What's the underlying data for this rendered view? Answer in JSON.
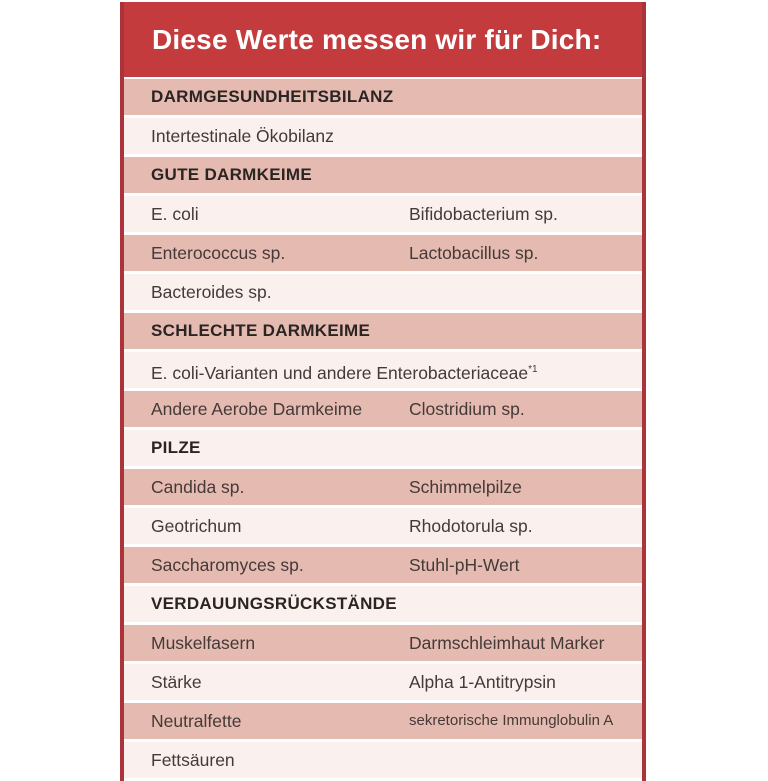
{
  "banner": {
    "title": "Diese Werte messen wir für Dich:"
  },
  "colors": {
    "banner_red": "#c33b3c",
    "border_red": "#aa343a",
    "row_rose": "#e5bab1",
    "row_light": "#faf0ed",
    "banner_text": "#ffffff",
    "item_text": "#443a37",
    "header_text": "#2a2523"
  },
  "table": {
    "rows": [
      {
        "type": "header",
        "shade": "rose",
        "col1": "DARMGESUNDHEITSBILANZ"
      },
      {
        "type": "item",
        "shade": "light",
        "col1": "Intertestinale Ökobilanz"
      },
      {
        "type": "header",
        "shade": "rose",
        "col1": "GUTE DARMKEIME"
      },
      {
        "type": "item",
        "shade": "light",
        "col1": "E. coli",
        "col2": "Bifidobacterium sp."
      },
      {
        "type": "item",
        "shade": "rose",
        "col1": "Enterococcus sp.",
        "col2": "Lactobacillus sp."
      },
      {
        "type": "item",
        "shade": "light",
        "col1": "Bacteroides sp."
      },
      {
        "type": "header",
        "shade": "rose",
        "col1": "SCHLECHTE DARMKEIME"
      },
      {
        "type": "item",
        "shade": "light",
        "col1": "E. coli-Varianten und andere Enterobacteriaceae",
        "sup": "*1"
      },
      {
        "type": "item",
        "shade": "rose",
        "col1": "Andere Aerobe Darmkeime",
        "col2": "Clostridium sp."
      },
      {
        "type": "header",
        "shade": "light",
        "col1": "PILZE"
      },
      {
        "type": "item",
        "shade": "rose",
        "col1": "Candida sp.",
        "col2": "Schimmelpilze"
      },
      {
        "type": "item",
        "shade": "light",
        "col1": "Geotrichum",
        "col2": "Rhodotorula sp."
      },
      {
        "type": "item",
        "shade": "rose",
        "col1": "Saccharomyces sp.",
        "col2": "Stuhl-pH-Wert"
      },
      {
        "type": "header",
        "shade": "light",
        "col1": "VERDAUUNGSRÜCKSTÄNDE"
      },
      {
        "type": "item",
        "shade": "rose",
        "col1": "Muskelfasern",
        "col2": "Darmschleimhaut Marker"
      },
      {
        "type": "item",
        "shade": "light",
        "col1": "Stärke",
        "col2": "Alpha 1-Antitrypsin"
      },
      {
        "type": "item",
        "shade": "rose",
        "col1": "Neutralfette",
        "col2": "sekretorische Immunglobulin A"
      },
      {
        "type": "item",
        "shade": "light",
        "col1": "Fettsäuren"
      }
    ]
  }
}
